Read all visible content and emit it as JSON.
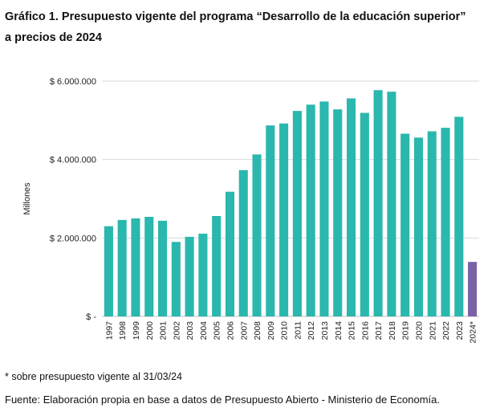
{
  "header": {
    "title_line1": "Gráfico 1. Presupuesto vigente del programa “Desarrollo de la educación superior”",
    "title_line2": "a precios de 2024"
  },
  "footnote": "* sobre presupuesto vigente al 31/03/24",
  "source": "Fuente: Elaboración propia en base a datos de Presupuesto Abierto - Ministerio de Economía.",
  "colors": {
    "bar": "#2ab7ae",
    "bar_highlight": "#7b62a8",
    "grid": "#d9d9d9",
    "axis": "#bfbfbf"
  },
  "chart_data": {
    "type": "bar",
    "title": "",
    "xlabel": "",
    "ylabel": "Millones",
    "ylim": [
      0,
      6000000
    ],
    "yticks": [
      0,
      2000000,
      4000000,
      6000000
    ],
    "ytick_labels": [
      "$ -",
      "$ 2.000.000",
      "$ 4.000.000",
      "$ 6.000.000"
    ],
    "grid": true,
    "categories": [
      "1997",
      "1998",
      "1999",
      "2000",
      "2001",
      "2002",
      "2003",
      "2004",
      "2005",
      "2006",
      "2007",
      "2008",
      "2009",
      "2010",
      "2011",
      "2012",
      "2013",
      "2014",
      "2015",
      "2016",
      "2017",
      "2018",
      "2019",
      "2020",
      "2021",
      "2022",
      "2023",
      "2024*"
    ],
    "values": [
      2300000,
      2460000,
      2500000,
      2540000,
      2440000,
      1900000,
      2030000,
      2110000,
      2560000,
      3180000,
      3730000,
      4130000,
      4870000,
      4920000,
      5240000,
      5400000,
      5480000,
      5280000,
      5560000,
      5190000,
      5770000,
      5730000,
      4660000,
      4560000,
      4720000,
      4810000,
      5090000,
      1390000
    ],
    "highlight_category": "2024*"
  }
}
